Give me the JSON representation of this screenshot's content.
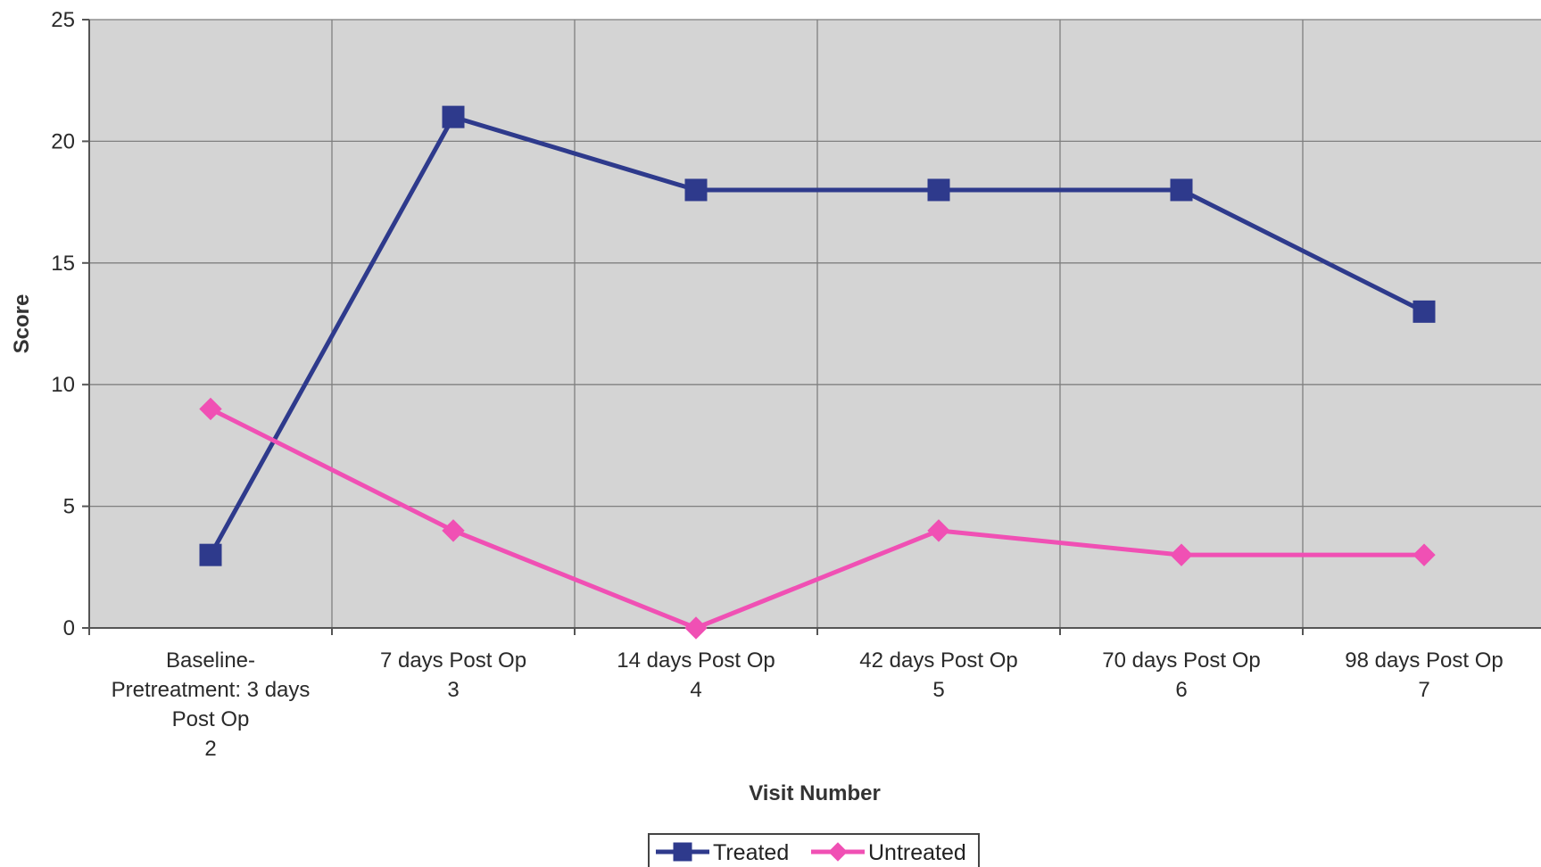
{
  "chart_data": {
    "type": "line",
    "title": "",
    "xlabel": "Visit Number",
    "ylabel": "Score",
    "ylim": [
      0,
      25
    ],
    "yticks": [
      0,
      5,
      10,
      15,
      20,
      25
    ],
    "grid": true,
    "legend_position": "bottom",
    "categories": [
      [
        "Baseline-",
        "Pretreatment: 3 days",
        "Post Op",
        "2"
      ],
      [
        "7 days Post Op",
        "3"
      ],
      [
        "14 days Post Op",
        "4"
      ],
      [
        "42 days Post Op",
        "5"
      ],
      [
        "70 days Post Op",
        "6"
      ],
      [
        "98 days Post Op",
        "7"
      ]
    ],
    "series": [
      {
        "name": "Treated",
        "color": "#2e3a8c",
        "marker": "square",
        "values": [
          3,
          21,
          18,
          18,
          18,
          13
        ]
      },
      {
        "name": "Untreated",
        "color": "#f050b4",
        "marker": "diamond",
        "values": [
          9,
          4,
          0,
          4,
          3,
          3
        ]
      }
    ],
    "plot_background": "#d4d4d4",
    "grid_color": "#7f7f7f"
  }
}
